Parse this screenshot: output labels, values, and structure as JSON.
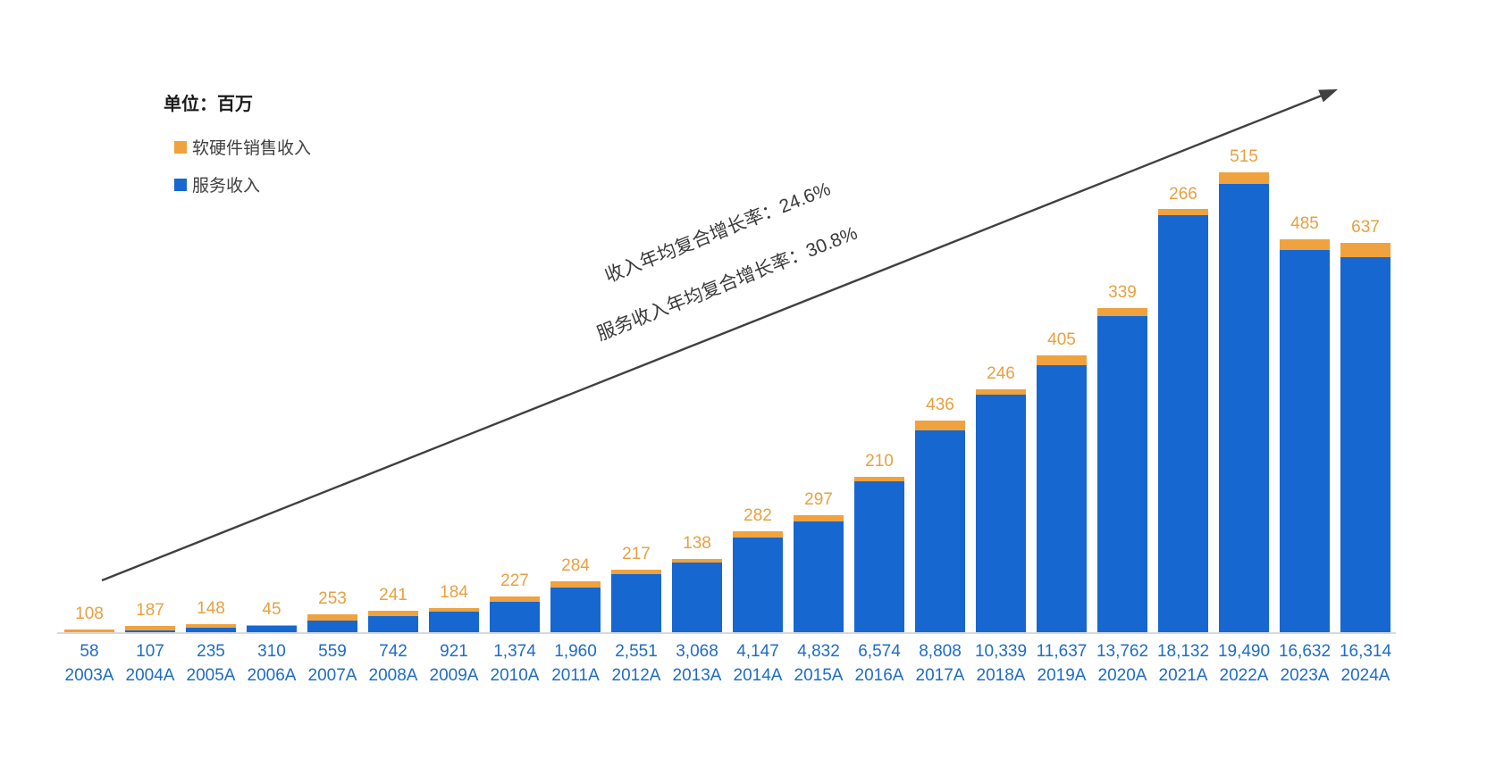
{
  "unit_label": "单位：百万",
  "legend": {
    "items": [
      {
        "label": "软硬件销售收入",
        "color": "#EFA23D"
      },
      {
        "label": "服务收入",
        "color": "#1667D0"
      }
    ]
  },
  "annotations": {
    "revenue_cagr": "收入年均复合增长率：24.6%",
    "service_cagr": "服务收入年均复合增长率：30.8%"
  },
  "chart_data": {
    "type": "bar",
    "stacked": true,
    "title": "",
    "unit": "百万",
    "categories": [
      "2003A",
      "2004A",
      "2005A",
      "2006A",
      "2007A",
      "2008A",
      "2009A",
      "2010A",
      "2011A",
      "2012A",
      "2013A",
      "2014A",
      "2015A",
      "2016A",
      "2017A",
      "2018A",
      "2019A",
      "2020A",
      "2021A",
      "2022A",
      "2023A",
      "2024A"
    ],
    "series": [
      {
        "name": "服务收入",
        "color": "#1667D0",
        "values": [
          58,
          107,
          235,
          310,
          559,
          742,
          921,
          1374,
          1960,
          2551,
          3068,
          4147,
          4832,
          6574,
          8808,
          10339,
          11637,
          13762,
          18132,
          19490,
          16632,
          16314
        ],
        "labels": [
          "58",
          "107",
          "235",
          "310",
          "559",
          "742",
          "921",
          "1,374",
          "1,960",
          "2,551",
          "3,068",
          "4,147",
          "4,832",
          "6,574",
          "8,808",
          "10,339",
          "11,637",
          "13,762",
          "18,132",
          "19,490",
          "16,632",
          "16,314"
        ],
        "labels_position": "below-axis"
      },
      {
        "name": "软硬件销售收入",
        "color": "#EFA23D",
        "values": [
          108,
          187,
          148,
          45,
          253,
          241,
          184,
          227,
          284,
          217,
          138,
          282,
          297,
          210,
          436,
          246,
          405,
          339,
          266,
          515,
          485,
          637
        ],
        "labels": [
          "108",
          "187",
          "148",
          "45",
          "253",
          "241",
          "184",
          "227",
          "284",
          "217",
          "138",
          "282",
          "297",
          "210",
          "436",
          "246",
          "405",
          "339",
          "266",
          "515",
          "485",
          "637"
        ],
        "labels_position": "above-bar"
      }
    ],
    "ylim": [
      0,
      20005
    ],
    "grid": false,
    "legend_position": "top-left",
    "annotations": [
      "收入年均复合增长率：24.6%",
      "服务收入年均复合增长率：30.8%"
    ]
  },
  "colors": {
    "service_bar": "#1667D0",
    "hardware_bar": "#EFA23D",
    "axis_line": "#D9D9D9",
    "value_text": "#1E6CC7",
    "hardware_label_text": "#E8A040",
    "annotation_text": "#3A3A3A",
    "arrow": "#404040"
  }
}
